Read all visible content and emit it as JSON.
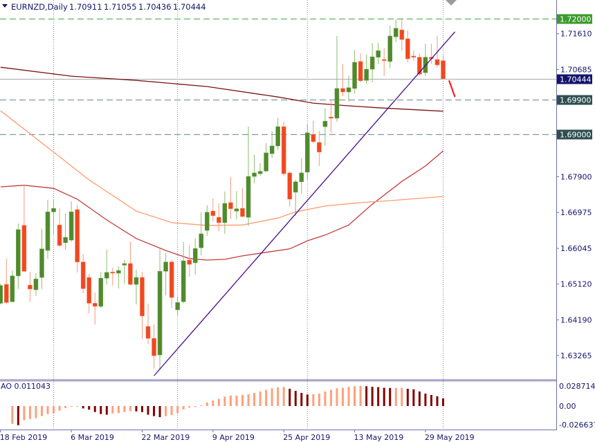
{
  "header": {
    "symbol_label": "EURNZD,Daily",
    "open": "1.70911",
    "high": "1.71055",
    "low": "1.70436",
    "close": "1.70444",
    "menu_icon": "triangle-down-icon"
  },
  "colors": {
    "bull_body": "#4f8a2b",
    "bear_body": "#f2471f",
    "bull_wick": "#8cbd6b",
    "bear_wick": "#f5977c",
    "ma_slow": "#7a1212",
    "ma_mid": "#c23b3b",
    "ma_fast": "#ff9a6e",
    "trendline": "#4b0a8c",
    "arrow_line": "#ff1a1a",
    "ao_up": "#ffa07a",
    "ao_down": "#800000",
    "axis": "#14146b",
    "level_green": "#3c9b2c",
    "level_gray": "#2f4f4f",
    "bid": "#14146b"
  },
  "chart_data": [
    {
      "type": "candlestick",
      "title": "EURNZD,Daily",
      "ylim": [
        1.6272,
        1.7248
      ],
      "y_ticks": [
        "1.71610",
        "1.70685",
        "1.67900",
        "1.66975",
        "1.66045",
        "1.65120",
        "1.64190",
        "1.63265"
      ],
      "x_ticks": [
        {
          "index": 0,
          "label": "18 Feb 2019"
        },
        {
          "index": 12,
          "label": "6 Mar 2019"
        },
        {
          "index": 24,
          "label": "22 Mar 2019"
        },
        {
          "index": 36,
          "label": "9 Apr 2019"
        },
        {
          "index": 48,
          "label": "25 Apr 2019"
        },
        {
          "index": 60,
          "label": "13 May 2019"
        },
        {
          "index": 72,
          "label": "29 May 2019"
        }
      ],
      "period_separators": [
        9,
        30,
        52,
        75
      ],
      "ohlc": [
        [
          1.6462,
          1.6513,
          1.6459,
          1.6508
        ],
        [
          1.6511,
          1.6577,
          1.6461,
          1.6464
        ],
        [
          1.6466,
          1.6547,
          1.6464,
          1.6533
        ],
        [
          1.6533,
          1.6669,
          1.6499,
          1.6653
        ],
        [
          1.6664,
          1.6769,
          1.6543,
          1.6545
        ],
        [
          1.6509,
          1.6543,
          1.6466,
          1.6499
        ],
        [
          1.6497,
          1.654,
          1.6481,
          1.6525
        ],
        [
          1.6529,
          1.6655,
          1.6499,
          1.6603
        ],
        [
          1.6599,
          1.673,
          1.6577,
          1.6699
        ],
        [
          1.6699,
          1.6732,
          1.6642,
          1.6708
        ],
        [
          1.6665,
          1.6707,
          1.6608,
          1.6612
        ],
        [
          1.6619,
          1.6694,
          1.6601,
          1.6633
        ],
        [
          1.6626,
          1.6726,
          1.6621,
          1.6699
        ],
        [
          1.6705,
          1.6717,
          1.6542,
          1.6569
        ],
        [
          1.6569,
          1.659,
          1.6488,
          1.65
        ],
        [
          1.6529,
          1.6538,
          1.6436,
          1.6462
        ],
        [
          1.6462,
          1.649,
          1.6407,
          1.6454
        ],
        [
          1.6454,
          1.6543,
          1.645,
          1.6527
        ],
        [
          1.6527,
          1.6601,
          1.6511,
          1.6542
        ],
        [
          1.6543,
          1.6554,
          1.6508,
          1.6542
        ],
        [
          1.654,
          1.6558,
          1.65,
          1.6547
        ],
        [
          1.6561,
          1.6574,
          1.6513,
          1.6565
        ],
        [
          1.6565,
          1.6622,
          1.6509,
          1.6511
        ],
        [
          1.6511,
          1.6549,
          1.6459,
          1.6529
        ],
        [
          1.6529,
          1.6543,
          1.6369,
          1.6429
        ],
        [
          1.6402,
          1.6461,
          1.6357,
          1.6371
        ],
        [
          1.6371,
          1.6407,
          1.6292,
          1.6326
        ],
        [
          1.6328,
          1.6603,
          1.6289,
          1.6545
        ],
        [
          1.6545,
          1.6592,
          1.6482,
          1.6569
        ],
        [
          1.6569,
          1.6574,
          1.645,
          1.6477
        ],
        [
          1.6445,
          1.6477,
          1.6432,
          1.6464
        ],
        [
          1.6466,
          1.6621,
          1.6462,
          1.6572
        ],
        [
          1.6574,
          1.6613,
          1.6531,
          1.6563
        ],
        [
          1.6567,
          1.663,
          1.6536,
          1.6604
        ],
        [
          1.6606,
          1.6698,
          1.6586,
          1.6642
        ],
        [
          1.6651,
          1.6716,
          1.6637,
          1.6698
        ],
        [
          1.6701,
          1.6734,
          1.6674,
          1.6689
        ],
        [
          1.6685,
          1.6721,
          1.6649,
          1.6671
        ],
        [
          1.6671,
          1.6752,
          1.6642,
          1.6721
        ],
        [
          1.6723,
          1.6789,
          1.668,
          1.6707
        ],
        [
          1.6701,
          1.6753,
          1.668,
          1.6707
        ],
        [
          1.6708,
          1.676,
          1.6685,
          1.6687
        ],
        [
          1.6685,
          1.692,
          1.6662,
          1.6791
        ],
        [
          1.6791,
          1.6847,
          1.6773,
          1.68
        ],
        [
          1.6798,
          1.6825,
          1.6793,
          1.6804
        ],
        [
          1.6805,
          1.6877,
          1.6802,
          1.6852
        ],
        [
          1.685,
          1.6908,
          1.6839,
          1.687
        ],
        [
          1.687,
          1.6943,
          1.6859,
          1.692
        ],
        [
          1.692,
          1.6933,
          1.6793,
          1.6798
        ],
        [
          1.68,
          1.6804,
          1.6712,
          1.6732
        ],
        [
          1.675,
          1.6782,
          1.6689,
          1.6777
        ],
        [
          1.6777,
          1.6838,
          1.6746,
          1.68
        ],
        [
          1.6802,
          1.6927,
          1.6782,
          1.6904
        ],
        [
          1.69,
          1.6936,
          1.6877,
          1.6881
        ],
        [
          1.6879,
          1.6909,
          1.6818,
          1.6854
        ],
        [
          1.692,
          1.6967,
          1.687,
          1.6934
        ],
        [
          1.6945,
          1.6987,
          1.6904,
          1.6942
        ],
        [
          1.6942,
          1.7155,
          1.6933,
          1.7019
        ],
        [
          1.7019,
          1.7082,
          1.6999,
          1.701
        ],
        [
          1.701,
          1.7053,
          1.6985,
          1.7021
        ],
        [
          1.7019,
          1.7119,
          1.7006,
          1.7087
        ],
        [
          1.7089,
          1.711,
          1.7035,
          1.7039
        ],
        [
          1.704,
          1.7107,
          1.7031,
          1.7069
        ],
        [
          1.7069,
          1.7137,
          1.7035,
          1.7101
        ],
        [
          1.71,
          1.7137,
          1.7082,
          1.7117
        ],
        [
          1.7094,
          1.7123,
          1.7051,
          1.7092
        ],
        [
          1.7089,
          1.7182,
          1.7071,
          1.7155
        ],
        [
          1.7153,
          1.7198,
          1.7139,
          1.7175
        ],
        [
          1.7171,
          1.7202,
          1.7117,
          1.7146
        ],
        [
          1.7148,
          1.717,
          1.7087,
          1.7096
        ],
        [
          1.7103,
          1.7117,
          1.7091,
          1.71
        ],
        [
          1.71,
          1.711,
          1.7053,
          1.7056
        ],
        [
          1.706,
          1.7135,
          1.7051,
          1.71
        ],
        [
          1.71,
          1.7135,
          1.7083,
          1.7096
        ],
        [
          1.7094,
          1.7155,
          1.7074,
          1.708
        ],
        [
          1.70911,
          1.71055,
          1.70436,
          1.70444
        ]
      ],
      "moving_averages": [
        {
          "key": "ma_slow",
          "points": [
            [
              0,
              1.7074
            ],
            [
              12,
              1.7051
            ],
            [
              23,
              1.704
            ],
            [
              35,
              1.7024
            ],
            [
              47,
              1.6997
            ],
            [
              53,
              1.6981
            ],
            [
              59,
              1.6974
            ],
            [
              64,
              1.6969
            ],
            [
              75,
              1.696
            ]
          ]
        },
        {
          "key": "ma_mid",
          "points": [
            [
              0,
              1.6764
            ],
            [
              4,
              1.6768
            ],
            [
              9,
              1.676
            ],
            [
              13,
              1.6732
            ],
            [
              18,
              1.6678
            ],
            [
              23,
              1.663
            ],
            [
              28,
              1.6599
            ],
            [
              32,
              1.6578
            ],
            [
              35,
              1.6574
            ],
            [
              38,
              1.6576
            ],
            [
              41,
              1.6585
            ],
            [
              45,
              1.6594
            ],
            [
              49,
              1.6603
            ],
            [
              52,
              1.6624
            ],
            [
              55,
              1.6639
            ],
            [
              59,
              1.6665
            ],
            [
              63,
              1.6719
            ],
            [
              68,
              1.6778
            ],
            [
              72,
              1.6818
            ],
            [
              75,
              1.6857
            ]
          ]
        },
        {
          "key": "ma_fast",
          "points": [
            [
              0,
              1.6961
            ],
            [
              9,
              1.6854
            ],
            [
              15,
              1.6782
            ],
            [
              23,
              1.6701
            ],
            [
              29,
              1.6671
            ],
            [
              35,
              1.6664
            ],
            [
              41,
              1.6665
            ],
            [
              47,
              1.6683
            ],
            [
              50,
              1.6699
            ],
            [
              55,
              1.6714
            ],
            [
              61,
              1.6723
            ],
            [
              66,
              1.6728
            ],
            [
              75,
              1.6739
            ]
          ]
        }
      ],
      "trendline": {
        "from": [
          26,
          1.6274
        ],
        "to": [
          77,
          1.7166
        ]
      },
      "arrow_line": {
        "from": [
          76,
          1.704
        ],
        "to": [
          77,
          1.6997
        ]
      },
      "levels": [
        {
          "price": 1.72,
          "label": "1.72000",
          "style": "dashed",
          "color_key": "level_green"
        },
        {
          "price": 1.699,
          "label": "1.69900",
          "style": "dashed",
          "color_key": "level_gray"
        },
        {
          "price": 1.69,
          "label": "1.69000",
          "style": "dashed",
          "color_key": "level_gray"
        },
        {
          "price": 1.70444,
          "label": "1.70444",
          "style": "solid",
          "color_key": "bid"
        }
      ]
    },
    {
      "type": "bar",
      "title": "AO 0.011043",
      "ylim": [
        -0.0275,
        0.0295
      ],
      "y_ticks": [
        "0.028714",
        "0.00",
        "-0.026637"
      ],
      "values": [
        -0.0254,
        -0.0274,
        -0.0202,
        -0.0187,
        -0.0173,
        -0.0144,
        -0.0115,
        -0.0101,
        -0.0067,
        -0.0029,
        -0.0009,
        -0.0005,
        -0.0034,
        -0.0052,
        -0.0086,
        -0.0115,
        -0.0124,
        -0.0106,
        -0.0101,
        -0.0086,
        -0.0072,
        -0.0077,
        -0.0086,
        -0.0124,
        -0.0144,
        -0.0158,
        -0.0144,
        -0.013,
        -0.0101,
        -0.0049,
        -0.0023,
        -0.0014,
        0.0009,
        0.005,
        0.008,
        0.0104,
        0.0134,
        0.0149,
        0.0149,
        0.0158,
        0.0169,
        0.0187,
        0.0208,
        0.0231,
        0.0253,
        0.0267,
        0.0274,
        0.0247,
        0.0217,
        0.0187,
        0.0164,
        0.0169,
        0.0178,
        0.0208,
        0.0231,
        0.0253,
        0.0261,
        0.0274,
        0.0283,
        0.0288,
        0.0283,
        0.0274,
        0.027,
        0.0261,
        0.0258,
        0.0259,
        0.0259,
        0.0247,
        0.0238,
        0.0208,
        0.0178,
        0.0158,
        0.014,
        0.011
      ]
    }
  ]
}
